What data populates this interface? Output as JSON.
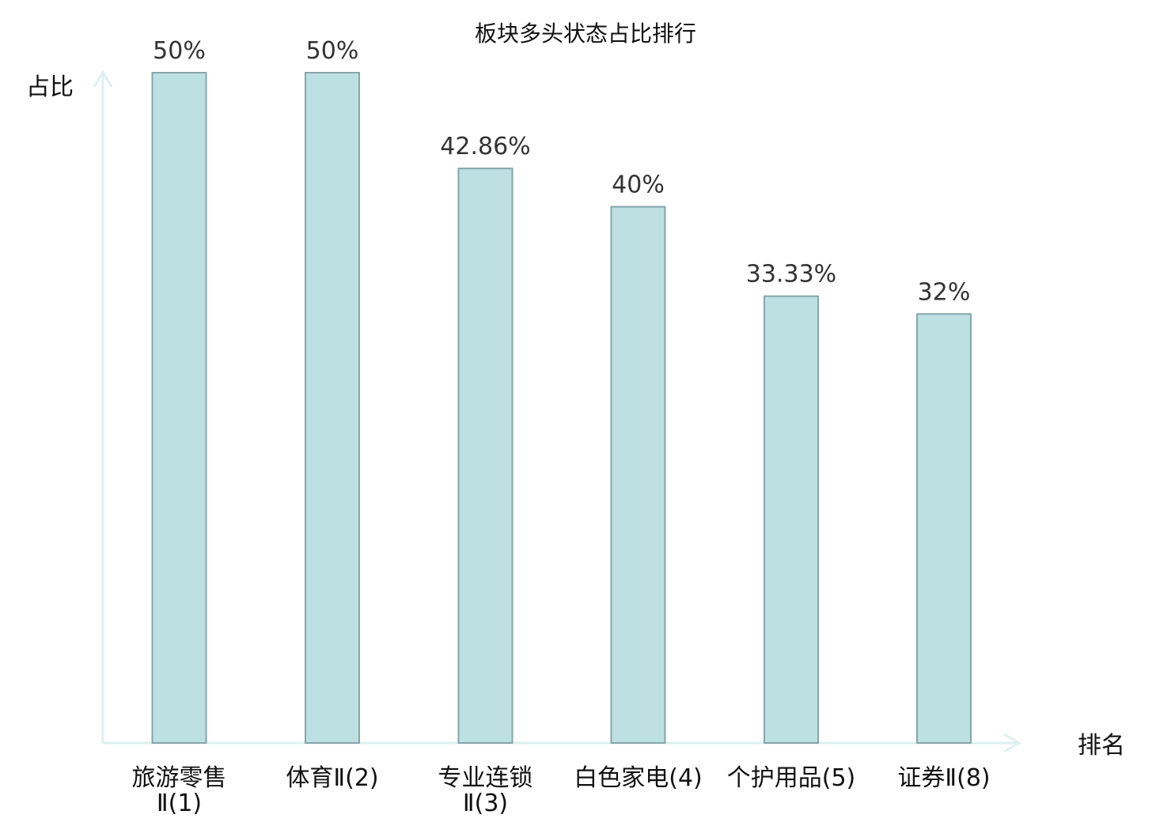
{
  "chart_data": {
    "type": "bar",
    "title": "板块多头状态占比排行",
    "ylabel": "占比",
    "xlabel": "排名",
    "ylim": [
      0,
      50
    ],
    "grid": false,
    "categories": [
      "旅游零售Ⅱ(1)",
      "体育Ⅱ(2)",
      "专业连锁Ⅱ(3)",
      "白色家电(4)",
      "个护用品(5)",
      "证券Ⅱ(8)"
    ],
    "category_lines": [
      [
        "旅游零售",
        "Ⅱ(1)"
      ],
      [
        "体育Ⅱ(2)"
      ],
      [
        "专业连锁",
        "Ⅱ(3)"
      ],
      [
        "白色家电(4)"
      ],
      [
        "个护用品(5)"
      ],
      [
        "证券Ⅱ(8)"
      ]
    ],
    "values": [
      50,
      50,
      42.86,
      40,
      33.33,
      32
    ],
    "value_labels": [
      "50%",
      "50%",
      "42.86%",
      "40%",
      "33.33%",
      "32%"
    ],
    "highlight_index": 5,
    "colors": {
      "bar_fill": "#bde0e3",
      "bar_stroke": "#86a6aa",
      "axis": "#ddf1ef",
      "highlight_label": "#e60000",
      "label": "#111111",
      "value_label": "#333333"
    }
  }
}
